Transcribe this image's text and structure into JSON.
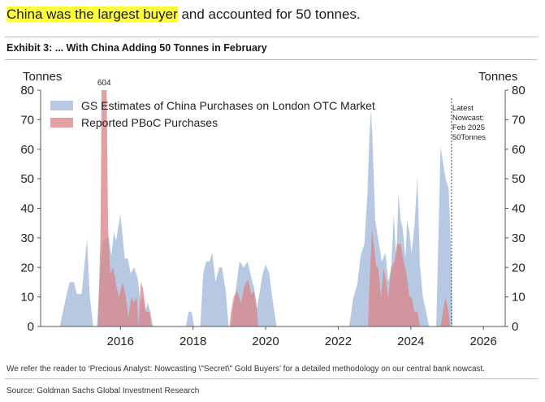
{
  "headline": {
    "highlight": "China was the largest buyer",
    "rest": " and accounted for 50 tonnes."
  },
  "exhibit_title": "Exhibit 3: ... With China Adding 50 Tonnes in February",
  "note": "We refer the reader to ‘Precious Analyst: Nowcasting \\\"Secret\\\" Gold Buyers’ for a detailed methodology on our central bank nowcast.",
  "source": "Source: Goldman Sachs Global Investment Research",
  "colors": {
    "gs_fill": "#aac0dd",
    "pboc_fill": "#d9868b",
    "highlight": "#ffff3a"
  },
  "chart_data": {
    "type": "area",
    "title": "Exhibit 3: ... With China Adding 50 Tonnes in February",
    "ylabel_left": "Tonnes",
    "ylabel_right": "Tonnes",
    "ylim": [
      0,
      80
    ],
    "xlim": [
      2013.8,
      2026.6
    ],
    "yticks": [
      0,
      10,
      20,
      30,
      40,
      50,
      60,
      70,
      80
    ],
    "xticks": [
      2016,
      2018,
      2020,
      2022,
      2024,
      2026
    ],
    "legend": [
      "GS Estimates of China Purchases on London OTC Market",
      "Reported PBoC Purchases"
    ],
    "legend_position": "top-left",
    "annotation_peak": "604",
    "nowcast": {
      "x": 2025.12,
      "lines": [
        "Latest",
        "Nowcast:",
        "Feb 2025",
        "50Tonnes"
      ]
    },
    "series": [
      {
        "name": "GS Estimates of China Purchases on London OTC Market",
        "points": [
          [
            2014.33,
            0
          ],
          [
            2014.5,
            10
          ],
          [
            2014.6,
            15
          ],
          [
            2014.72,
            15
          ],
          [
            2014.8,
            11
          ],
          [
            2014.93,
            11
          ],
          [
            2015.0,
            20
          ],
          [
            2015.08,
            30
          ],
          [
            2015.15,
            11
          ],
          [
            2015.25,
            0
          ],
          [
            2015.35,
            0
          ],
          [
            2015.45,
            20
          ],
          [
            2015.52,
            29
          ],
          [
            2015.6,
            30
          ],
          [
            2015.68,
            30
          ],
          [
            2015.75,
            24
          ],
          [
            2015.82,
            32
          ],
          [
            2015.88,
            29
          ],
          [
            2015.93,
            33
          ],
          [
            2016.0,
            38
          ],
          [
            2016.05,
            32
          ],
          [
            2016.12,
            23
          ],
          [
            2016.2,
            23
          ],
          [
            2016.28,
            18
          ],
          [
            2016.38,
            20
          ],
          [
            2016.48,
            16
          ],
          [
            2016.55,
            8
          ],
          [
            2016.62,
            10
          ],
          [
            2016.68,
            5
          ],
          [
            2016.75,
            8
          ],
          [
            2016.82,
            5
          ],
          [
            2016.9,
            0
          ],
          [
            2017.8,
            0
          ],
          [
            2017.88,
            5
          ],
          [
            2017.96,
            5
          ],
          [
            2018.03,
            0
          ],
          [
            2018.2,
            0
          ],
          [
            2018.28,
            18
          ],
          [
            2018.36,
            22
          ],
          [
            2018.45,
            22
          ],
          [
            2018.53,
            25
          ],
          [
            2018.62,
            15
          ],
          [
            2018.72,
            20
          ],
          [
            2018.8,
            20
          ],
          [
            2018.9,
            12
          ],
          [
            2018.98,
            0
          ],
          [
            2019.05,
            0
          ],
          [
            2019.15,
            10
          ],
          [
            2019.28,
            22
          ],
          [
            2019.4,
            20
          ],
          [
            2019.5,
            22
          ],
          [
            2019.58,
            18
          ],
          [
            2019.68,
            13
          ],
          [
            2019.76,
            6
          ],
          [
            2019.84,
            12
          ],
          [
            2019.92,
            18
          ],
          [
            2020.0,
            21
          ],
          [
            2020.1,
            18
          ],
          [
            2020.18,
            10
          ],
          [
            2020.3,
            0
          ],
          [
            2022.3,
            0
          ],
          [
            2022.42,
            10
          ],
          [
            2022.52,
            14
          ],
          [
            2022.62,
            24
          ],
          [
            2022.72,
            28
          ],
          [
            2022.8,
            44
          ],
          [
            2022.86,
            65
          ],
          [
            2022.9,
            73
          ],
          [
            2022.94,
            65
          ],
          [
            2023.02,
            36
          ],
          [
            2023.12,
            28
          ],
          [
            2023.2,
            22
          ],
          [
            2023.3,
            25
          ],
          [
            2023.38,
            15
          ],
          [
            2023.46,
            20
          ],
          [
            2023.53,
            38
          ],
          [
            2023.6,
            22
          ],
          [
            2023.66,
            45
          ],
          [
            2023.72,
            36
          ],
          [
            2023.78,
            33
          ],
          [
            2023.85,
            23
          ],
          [
            2023.9,
            36
          ],
          [
            2023.96,
            32
          ],
          [
            2024.02,
            25
          ],
          [
            2024.1,
            34
          ],
          [
            2024.18,
            51
          ],
          [
            2024.25,
            21
          ],
          [
            2024.33,
            10
          ],
          [
            2024.42,
            5
          ],
          [
            2024.5,
            0
          ],
          [
            2024.7,
            0
          ],
          [
            2024.77,
            35
          ],
          [
            2024.82,
            61
          ],
          [
            2024.88,
            56
          ],
          [
            2024.96,
            50
          ],
          [
            2025.04,
            47
          ],
          [
            2025.1,
            28
          ],
          [
            2025.15,
            0
          ]
        ]
      },
      {
        "name": "Reported PBoC Purchases",
        "points": [
          [
            2015.38,
            0
          ],
          [
            2015.45,
            30
          ],
          [
            2015.48,
            80
          ],
          [
            2015.62,
            80
          ],
          [
            2015.66,
            33
          ],
          [
            2015.72,
            18
          ],
          [
            2015.8,
            20
          ],
          [
            2015.88,
            14
          ],
          [
            2015.96,
            10
          ],
          [
            2016.06,
            15
          ],
          [
            2016.15,
            10
          ],
          [
            2016.22,
            3
          ],
          [
            2016.3,
            10
          ],
          [
            2016.38,
            8
          ],
          [
            2016.45,
            10
          ],
          [
            2016.5,
            0
          ],
          [
            2016.5,
            0
          ],
          [
            2016.56,
            15
          ],
          [
            2016.62,
            13
          ],
          [
            2016.7,
            5
          ],
          [
            2016.8,
            5
          ],
          [
            2016.86,
            0
          ],
          [
            2019.0,
            0
          ],
          [
            2019.05,
            5
          ],
          [
            2019.12,
            10
          ],
          [
            2019.22,
            12
          ],
          [
            2019.32,
            8
          ],
          [
            2019.42,
            14
          ],
          [
            2019.52,
            16
          ],
          [
            2019.6,
            11
          ],
          [
            2019.68,
            12
          ],
          [
            2019.74,
            8
          ],
          [
            2019.8,
            0
          ],
          [
            2022.82,
            0
          ],
          [
            2022.86,
            15
          ],
          [
            2022.93,
            33
          ],
          [
            2022.98,
            28
          ],
          [
            2023.05,
            20
          ],
          [
            2023.1,
            20
          ],
          [
            2023.14,
            15
          ],
          [
            2023.18,
            10
          ],
          [
            2023.25,
            20
          ],
          [
            2023.32,
            15
          ],
          [
            2023.38,
            10
          ],
          [
            2023.46,
            20
          ],
          [
            2023.55,
            22
          ],
          [
            2023.62,
            28
          ],
          [
            2023.72,
            28
          ],
          [
            2023.8,
            22
          ],
          [
            2023.88,
            18
          ],
          [
            2023.96,
            10
          ],
          [
            2024.02,
            10
          ],
          [
            2024.1,
            5
          ],
          [
            2024.18,
            5
          ],
          [
            2024.25,
            0
          ],
          [
            2024.82,
            0
          ],
          [
            2024.88,
            5
          ],
          [
            2024.96,
            10
          ],
          [
            2025.04,
            5
          ],
          [
            2025.08,
            0
          ]
        ]
      }
    ]
  }
}
